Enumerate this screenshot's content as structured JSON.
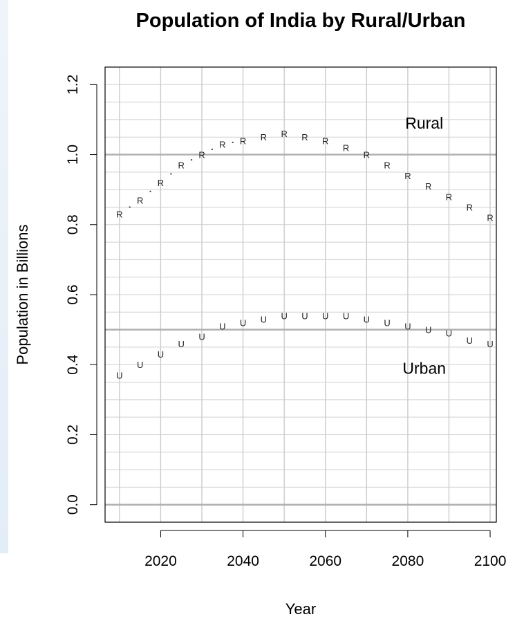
{
  "chart_data": {
    "type": "scatter",
    "title": "Population of India by Rural/Urban",
    "xlabel": "Year",
    "ylabel": "Population in Billions",
    "xlim": [
      2006.5,
      2101.5
    ],
    "ylim": [
      -0.05,
      1.25
    ],
    "xticks": [
      2020,
      2040,
      2060,
      2080,
      2100
    ],
    "yticks": [
      0.0,
      0.2,
      0.4,
      0.6,
      0.8,
      1.0,
      1.2
    ],
    "ytick_labels": [
      "0.0",
      "0.2",
      "0.4",
      "0.6",
      "0.8",
      "1.0",
      "1.2"
    ],
    "grid": true,
    "reference_lines": [
      0.0,
      0.5,
      1.0
    ],
    "x": [
      2010,
      2015,
      2020,
      2025,
      2030,
      2035,
      2040,
      2045,
      2050,
      2055,
      2060,
      2065,
      2070,
      2075,
      2080,
      2085,
      2090,
      2095,
      2100
    ],
    "series": [
      {
        "marker": "R",
        "color": "#222222",
        "values": [
          0.83,
          0.87,
          0.92,
          0.97,
          1.0,
          1.03,
          1.04,
          1.05,
          1.06,
          1.05,
          1.04,
          1.02,
          1.0,
          0.97,
          0.94,
          0.91,
          0.88,
          0.85,
          0.82
        ]
      },
      {
        "marker": "U",
        "color": "#222222",
        "values": [
          0.37,
          0.4,
          0.43,
          0.46,
          0.48,
          0.51,
          0.52,
          0.53,
          0.54,
          0.54,
          0.54,
          0.54,
          0.53,
          0.52,
          0.51,
          0.5,
          0.49,
          0.47,
          0.46
        ]
      }
    ],
    "annotations": [
      {
        "text": "Rural",
        "x": 2084,
        "y": 1.09
      },
      {
        "text": "Urban",
        "x": 2084,
        "y": 0.39
      }
    ]
  }
}
